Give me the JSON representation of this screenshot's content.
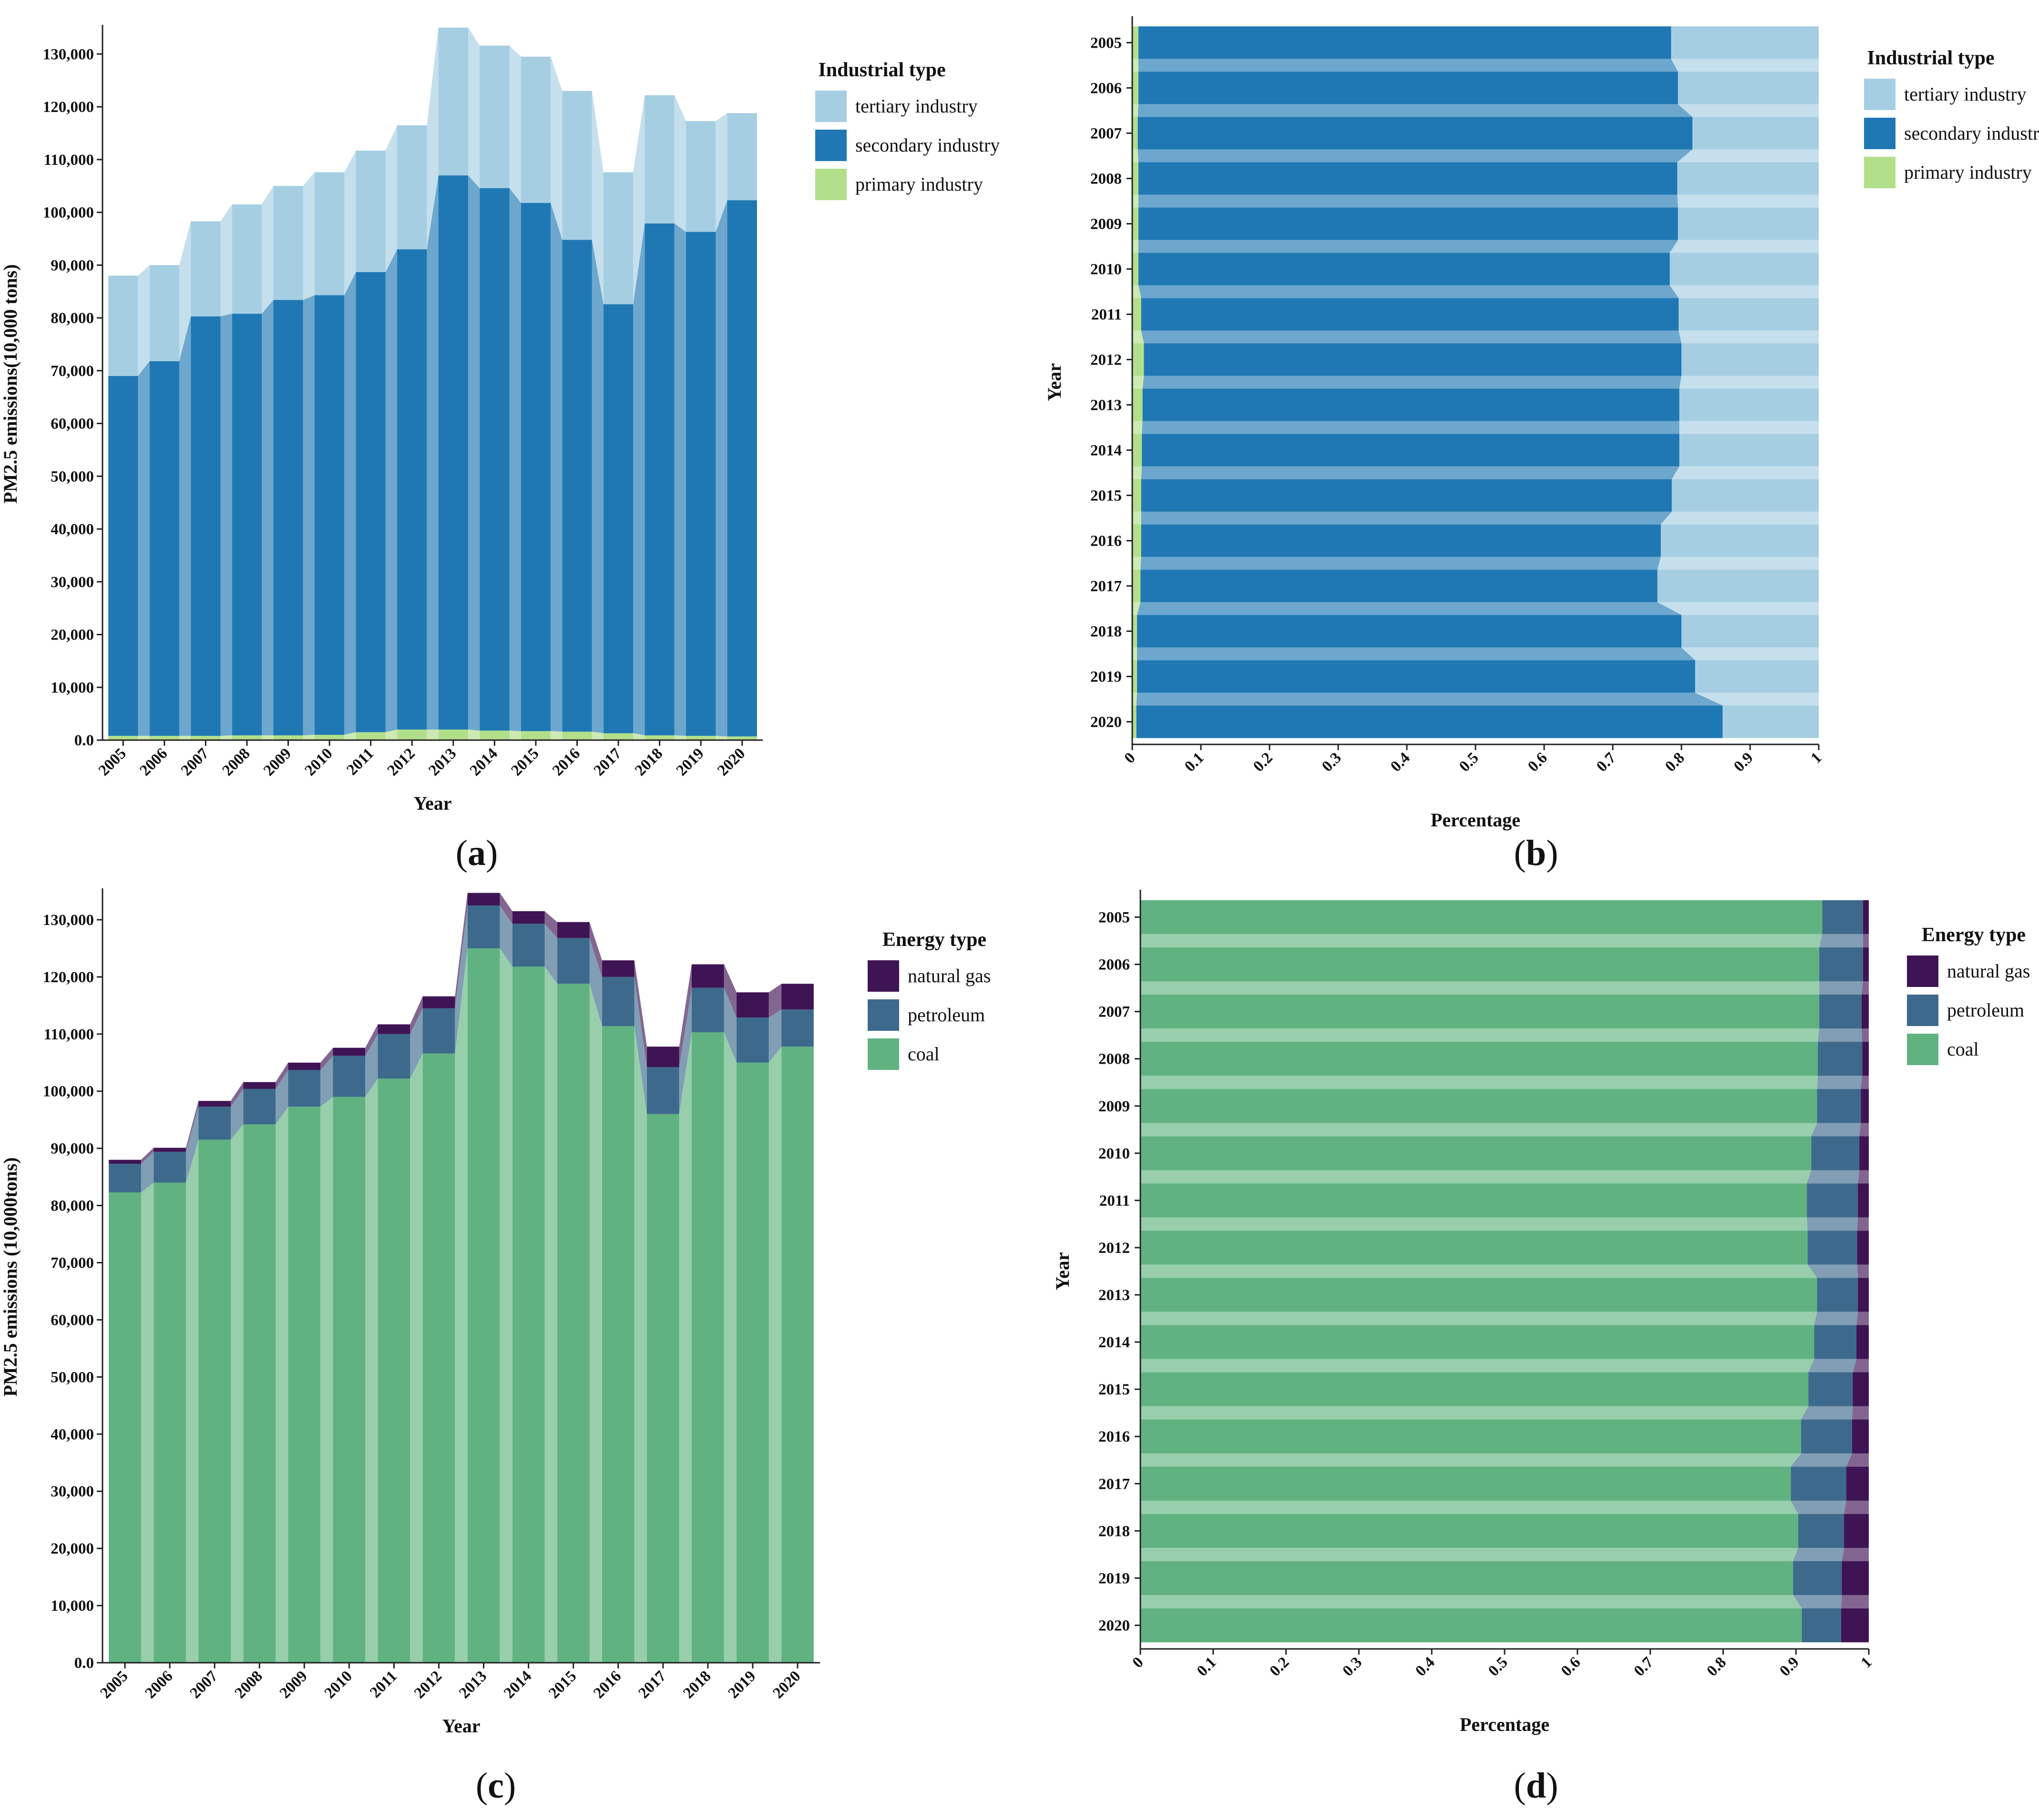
{
  "years": [
    "2005",
    "2006",
    "2007",
    "2008",
    "2009",
    "2010",
    "2011",
    "2012",
    "2013",
    "2014",
    "2015",
    "2016",
    "2017",
    "2018",
    "2019",
    "2020"
  ],
  "chart_data": [
    {
      "id": "a",
      "panel_label": "a",
      "type": "bar",
      "stacked": true,
      "title": "",
      "xlabel": "Year",
      "ylabel": "PM2.5 emissions(10,000 tons)",
      "ylim": [
        0,
        135000
      ],
      "yticks": [
        0,
        10000,
        20000,
        30000,
        40000,
        50000,
        60000,
        70000,
        80000,
        90000,
        100000,
        110000,
        120000,
        130000
      ],
      "ytick_labels": [
        "0.0",
        "10,000",
        "20,000",
        "30,000",
        "40,000",
        "50,000",
        "60,000",
        "70,000",
        "80,000",
        "90,000",
        "100,000",
        "110,000",
        "120,000",
        "130,000"
      ],
      "legend_title": "Industrial type",
      "legend_position": "top-right",
      "series": [
        {
          "name": "primary industry",
          "color": "#b2df8a",
          "values": [
            800,
            800,
            800,
            900,
            900,
            1000,
            1500,
            2000,
            2000,
            1800,
            1700,
            1600,
            1300,
            900,
            800,
            700
          ]
        },
        {
          "name": "secondary industry",
          "color": "#1f78b4",
          "values": [
            68200,
            71000,
            79500,
            79900,
            82500,
            83300,
            87200,
            91000,
            105000,
            102800,
            100100,
            93200,
            81300,
            97000,
            95500,
            101600
          ]
        },
        {
          "name": "tertiary industry",
          "color": "#a6cee3",
          "values": [
            19000,
            18200,
            18000,
            20700,
            21600,
            23300,
            23000,
            23500,
            28000,
            27000,
            27700,
            28200,
            25000,
            24300,
            21000,
            16500
          ]
        }
      ]
    },
    {
      "id": "b",
      "panel_label": "b",
      "type": "bar",
      "orientation": "horizontal",
      "stacked": true,
      "title": "",
      "xlabel": "Percentage",
      "ylabel": "Year",
      "xlim": [
        0,
        1
      ],
      "xticks": [
        0,
        0.1,
        0.2,
        0.3,
        0.4,
        0.5,
        0.6,
        0.7,
        0.8,
        0.9,
        1
      ],
      "xtick_labels": [
        "0",
        "0.1",
        "0.2",
        "0.3",
        "0.4",
        "0.5",
        "0.6",
        "0.7",
        "0.8",
        "0.9",
        "1"
      ],
      "legend_title": "Industrial type",
      "legend_position": "top-right",
      "series": [
        {
          "name": "primary industry",
          "color": "#b2df8a",
          "values": [
            0.009,
            0.009,
            0.008,
            0.009,
            0.009,
            0.009,
            0.013,
            0.017,
            0.015,
            0.014,
            0.013,
            0.013,
            0.012,
            0.007,
            0.007,
            0.006
          ]
        },
        {
          "name": "secondary industry",
          "color": "#1f78b4",
          "values": [
            0.776,
            0.786,
            0.808,
            0.785,
            0.786,
            0.774,
            0.783,
            0.783,
            0.782,
            0.783,
            0.773,
            0.757,
            0.753,
            0.793,
            0.813,
            0.854
          ]
        },
        {
          "name": "tertiary industry",
          "color": "#a6cee3",
          "values": [
            0.215,
            0.205,
            0.184,
            0.206,
            0.205,
            0.217,
            0.204,
            0.2,
            0.203,
            0.203,
            0.214,
            0.23,
            0.235,
            0.2,
            0.18,
            0.14
          ]
        }
      ]
    },
    {
      "id": "c",
      "panel_label": "c",
      "type": "bar",
      "stacked": true,
      "title": "",
      "xlabel": "Year",
      "ylabel": "PM2.5 emissions (10,000tons)",
      "ylim": [
        0,
        135000
      ],
      "yticks": [
        0,
        10000,
        20000,
        30000,
        40000,
        50000,
        60000,
        70000,
        80000,
        90000,
        100000,
        110000,
        120000,
        130000
      ],
      "ytick_labels": [
        "0.0",
        "10,000",
        "20,000",
        "30,000",
        "40,000",
        "50,000",
        "60,000",
        "70,000",
        "80,000",
        "90,000",
        "100,000",
        "110,000",
        "120,000",
        "130,000"
      ],
      "legend_title": "Energy type",
      "legend_position": "top-right",
      "series": [
        {
          "name": "coal",
          "color": "#60b380",
          "values": [
            82300,
            84000,
            91500,
            94200,
            97300,
            99000,
            102200,
            106600,
            125000,
            121800,
            118800,
            111400,
            96000,
            110300,
            105000,
            107800
          ]
        },
        {
          "name": "petroleum",
          "color": "#3d6a8c",
          "values": [
            5000,
            5400,
            5800,
            6200,
            6400,
            7200,
            7800,
            7900,
            7500,
            7500,
            8000,
            8600,
            8200,
            7800,
            7900,
            6500
          ]
        },
        {
          "name": "natural gas",
          "color": "#3f1454",
          "values": [
            700,
            700,
            1000,
            1200,
            1300,
            1400,
            1700,
            2100,
            2200,
            2200,
            2800,
            2900,
            3600,
            4100,
            4400,
            4500
          ]
        }
      ]
    },
    {
      "id": "d",
      "panel_label": "d",
      "type": "bar",
      "orientation": "horizontal",
      "stacked": true,
      "title": "",
      "xlabel": "Percentage",
      "ylabel": "Year",
      "xlim": [
        0,
        1
      ],
      "xticks": [
        0,
        0.1,
        0.2,
        0.3,
        0.4,
        0.5,
        0.6,
        0.7,
        0.8,
        0.9,
        1
      ],
      "xtick_labels": [
        "0",
        "0.1",
        "0.2",
        "0.3",
        "0.4",
        "0.5",
        "0.6",
        "0.7",
        "0.8",
        "0.9",
        "1"
      ],
      "legend_title": "Energy type",
      "legend_position": "top-right",
      "series": [
        {
          "name": "coal",
          "color": "#60b380",
          "values": [
            0.936,
            0.932,
            0.932,
            0.93,
            0.929,
            0.921,
            0.915,
            0.916,
            0.929,
            0.925,
            0.917,
            0.907,
            0.893,
            0.903,
            0.896,
            0.908
          ]
        },
        {
          "name": "petroleum",
          "color": "#3d6a8c",
          "values": [
            0.056,
            0.06,
            0.058,
            0.061,
            0.06,
            0.066,
            0.07,
            0.068,
            0.056,
            0.058,
            0.061,
            0.07,
            0.076,
            0.063,
            0.067,
            0.054
          ]
        },
        {
          "name": "natural gas",
          "color": "#3f1454",
          "values": [
            0.008,
            0.008,
            0.01,
            0.009,
            0.011,
            0.013,
            0.015,
            0.016,
            0.015,
            0.017,
            0.022,
            0.023,
            0.031,
            0.034,
            0.037,
            0.038
          ]
        }
      ]
    }
  ]
}
